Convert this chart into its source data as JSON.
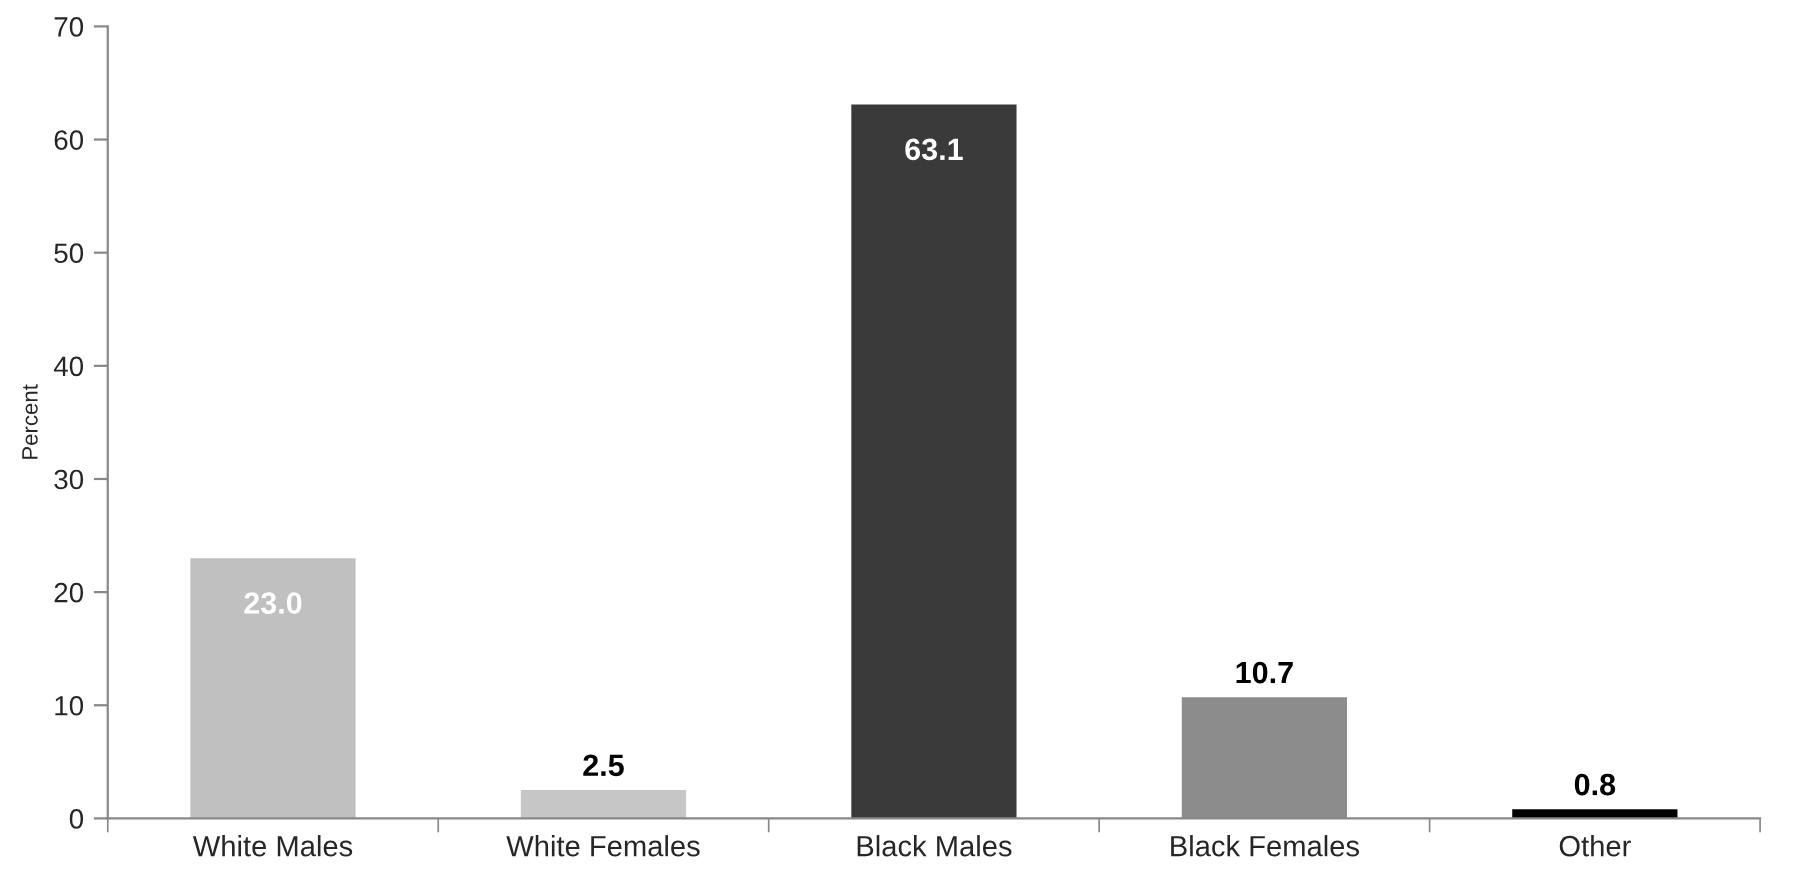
{
  "chart_data": {
    "type": "bar",
    "ylabel": "Percent",
    "categories": [
      "White Males",
      "White Females",
      "Black Males",
      "Black Females",
      "Other"
    ],
    "values": [
      23.0,
      2.5,
      63.1,
      10.7,
      0.8
    ],
    "colors": [
      "#c0c0c0",
      "#c6c6c6",
      "#3a3a3a",
      "#8c8c8c",
      "#000000"
    ],
    "value_labels": [
      "23.0",
      "2.5",
      "63.1",
      "10.7",
      "0.8"
    ],
    "ylim": [
      0,
      70
    ],
    "yticks": [
      0,
      10,
      20,
      30,
      40,
      50,
      60,
      70
    ],
    "grid": false,
    "legend": false
  }
}
